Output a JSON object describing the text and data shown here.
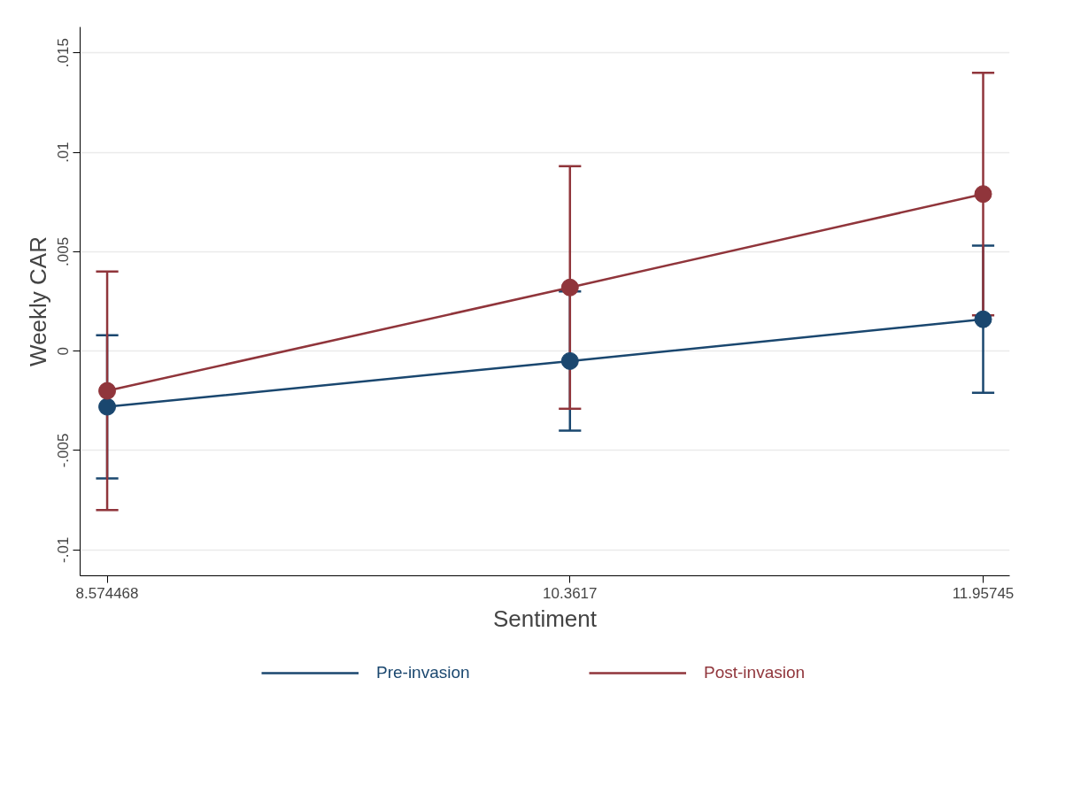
{
  "chart_data": {
    "type": "line",
    "xlabel": "Sentiment",
    "ylabel": "Weekly CAR",
    "x": [
      8.574468,
      10.3617,
      11.95745
    ],
    "xlim": [
      8.47,
      12.06
    ],
    "xticks": [
      8.574468,
      10.3617,
      11.95745
    ],
    "ylim": [
      -0.0113,
      0.0163
    ],
    "yticks": [
      {
        "value": -0.01,
        "label": "-.01"
      },
      {
        "value": -0.005,
        "label": "-.005"
      },
      {
        "value": 0,
        "label": "0"
      },
      {
        "value": 0.005,
        "label": ".005"
      },
      {
        "value": 0.01,
        "label": ".01"
      },
      {
        "value": 0.015,
        "label": ".015"
      }
    ],
    "series": [
      {
        "name": "Pre-invasion",
        "color": "#1a476f",
        "values": [
          -0.0028,
          -0.0005,
          0.0016
        ],
        "errors": [
          [
            -0.0064,
            0.0008
          ],
          0.0035,
          [
            -0.0021,
            0.0053
          ]
        ]
      },
      {
        "name": "Post-invasion",
        "color": "#90353b",
        "values": [
          -0.002,
          0.0032,
          0.0079
        ],
        "errors": [
          [
            -0.008,
            0.004
          ],
          [
            -0.0029,
            0.0093
          ],
          0.0061
        ]
      }
    ],
    "grid": "y",
    "legend": "bottom",
    "marker": "circle",
    "line_style": "solid"
  }
}
